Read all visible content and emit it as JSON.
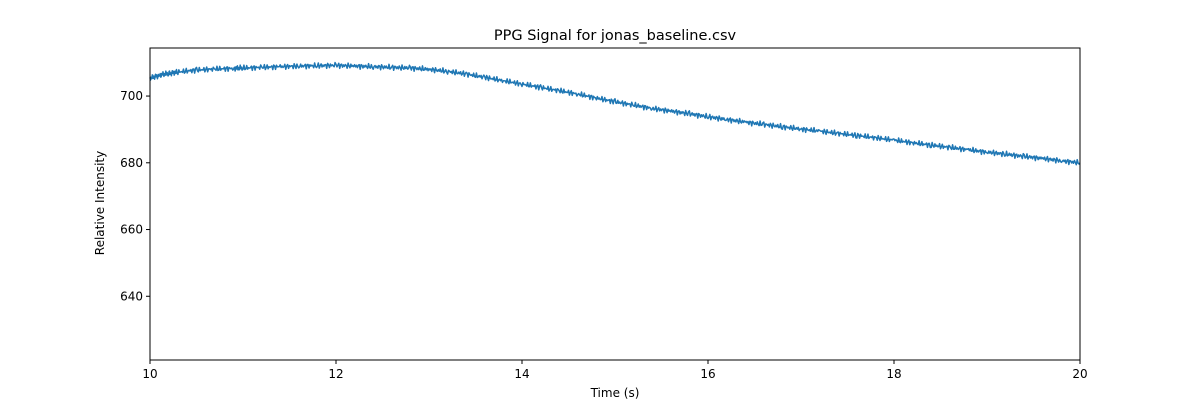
{
  "chart_data": {
    "type": "line",
    "title": "PPG Signal for jonas_baseline.csv",
    "xlabel": "Time (s)",
    "ylabel": "Relative Intensity",
    "xlim": [
      10,
      20
    ],
    "ylim": [
      620.9,
      714.4
    ],
    "xticks": [
      10,
      12,
      14,
      16,
      18,
      20
    ],
    "yticks": [
      640,
      660,
      680,
      700
    ],
    "grid": false,
    "legend": "none",
    "series": [
      {
        "color": "#1f77b4",
        "x": [
          10.0,
          10.1,
          10.2,
          10.3,
          10.5,
          10.7,
          10.9,
          11.0,
          11.2,
          11.4,
          11.6,
          11.8,
          12.0,
          12.2,
          12.4,
          12.6,
          12.8,
          13.0,
          13.2,
          13.4,
          13.6,
          13.8,
          14.0,
          14.2,
          14.4,
          14.6,
          14.8,
          15.0,
          15.2,
          15.4,
          15.6,
          15.8,
          16.0,
          16.2,
          16.4,
          16.6,
          16.8,
          17.0,
          17.2,
          17.4,
          17.6,
          17.8,
          18.0,
          18.2,
          18.4,
          18.6,
          18.8,
          19.0,
          19.2,
          19.4,
          19.6,
          19.8,
          20.0
        ],
        "y": [
          705.5,
          706.2,
          706.8,
          707.2,
          707.8,
          708.1,
          708.3,
          708.4,
          708.6,
          708.8,
          709.0,
          709.1,
          709.2,
          709.0,
          708.8,
          708.6,
          708.4,
          708.0,
          707.4,
          706.6,
          705.6,
          704.6,
          703.6,
          702.6,
          701.6,
          700.6,
          699.4,
          698.3,
          697.3,
          696.3,
          695.5,
          694.7,
          693.8,
          693.0,
          692.2,
          691.5,
          690.8,
          690.1,
          689.5,
          688.8,
          688.2,
          687.5,
          686.8,
          686.0,
          685.3,
          684.6,
          683.9,
          683.2,
          682.6,
          681.9,
          681.3,
          680.6,
          680.0
        ]
      }
    ]
  }
}
